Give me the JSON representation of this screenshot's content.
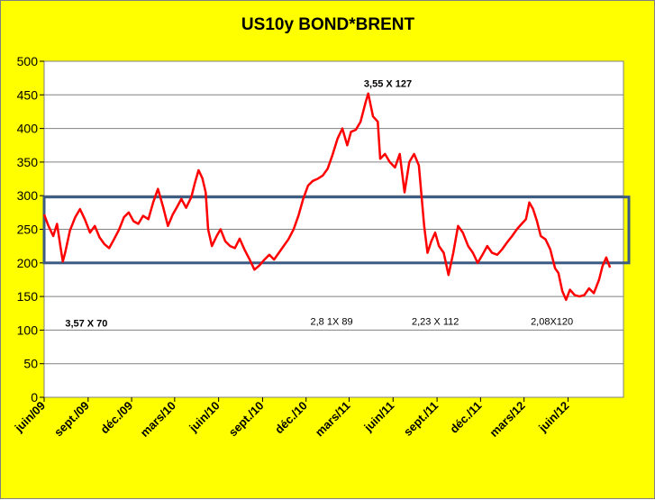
{
  "chart_data": {
    "type": "line",
    "title": "US10y BOND*BRENT",
    "xlabel": "",
    "ylabel": "",
    "ylim": [
      0,
      500
    ],
    "y_ticks": [
      0,
      50,
      100,
      150,
      200,
      250,
      300,
      350,
      400,
      450,
      500
    ],
    "x_ticks": [
      "juin/09",
      "sept./09",
      "déc./09",
      "mars/10",
      "juin/10",
      "sept./10",
      "déc./10",
      "mars/11",
      "juin/11",
      "sept./11",
      "déc./11",
      "mars/12",
      "juin/12"
    ],
    "xlim_months": [
      "2009-06",
      "2012-09"
    ],
    "grid": true,
    "legend": "none",
    "colors": {
      "line": "#ff0000",
      "box": "#3b5b84",
      "background": "#ffff00",
      "plot": "#ffffff",
      "grid": "#808080"
    },
    "series": [
      {
        "values": [
          [
            "2009-06-01",
            272
          ],
          [
            "2009-06-10",
            255
          ],
          [
            "2009-06-20",
            240
          ],
          [
            "2009-06-28",
            258
          ],
          [
            "2009-07-05",
            225
          ],
          [
            "2009-07-10",
            202
          ],
          [
            "2009-07-15",
            215
          ],
          [
            "2009-07-25",
            248
          ],
          [
            "2009-08-05",
            268
          ],
          [
            "2009-08-15",
            280
          ],
          [
            "2009-08-25",
            265
          ],
          [
            "2009-09-05",
            245
          ],
          [
            "2009-09-15",
            255
          ],
          [
            "2009-09-25",
            238
          ],
          [
            "2009-10-05",
            228
          ],
          [
            "2009-10-15",
            222
          ],
          [
            "2009-10-25",
            235
          ],
          [
            "2009-11-05",
            250
          ],
          [
            "2009-11-15",
            268
          ],
          [
            "2009-11-25",
            275
          ],
          [
            "2009-12-05",
            262
          ],
          [
            "2009-12-15",
            258
          ],
          [
            "2009-12-25",
            270
          ],
          [
            "2010-01-05",
            265
          ],
          [
            "2010-01-15",
            290
          ],
          [
            "2010-01-25",
            310
          ],
          [
            "2010-02-05",
            283
          ],
          [
            "2010-02-15",
            255
          ],
          [
            "2010-02-25",
            272
          ],
          [
            "2010-03-05",
            282
          ],
          [
            "2010-03-15",
            295
          ],
          [
            "2010-03-25",
            282
          ],
          [
            "2010-04-05",
            298
          ],
          [
            "2010-04-12",
            318
          ],
          [
            "2010-04-20",
            338
          ],
          [
            "2010-04-28",
            326
          ],
          [
            "2010-05-05",
            305
          ],
          [
            "2010-05-10",
            250
          ],
          [
            "2010-05-18",
            225
          ],
          [
            "2010-05-28",
            240
          ],
          [
            "2010-06-05",
            250
          ],
          [
            "2010-06-15",
            232
          ],
          [
            "2010-06-25",
            225
          ],
          [
            "2010-07-05",
            222
          ],
          [
            "2010-07-15",
            236
          ],
          [
            "2010-07-25",
            220
          ],
          [
            "2010-08-05",
            205
          ],
          [
            "2010-08-15",
            190
          ],
          [
            "2010-08-25",
            196
          ],
          [
            "2010-09-05",
            205
          ],
          [
            "2010-09-15",
            212
          ],
          [
            "2010-09-25",
            205
          ],
          [
            "2010-10-05",
            215
          ],
          [
            "2010-10-15",
            225
          ],
          [
            "2010-10-25",
            235
          ],
          [
            "2010-11-05",
            250
          ],
          [
            "2010-11-15",
            270
          ],
          [
            "2010-11-25",
            295
          ],
          [
            "2010-12-05",
            315
          ],
          [
            "2010-12-15",
            322
          ],
          [
            "2010-12-25",
            325
          ],
          [
            "2011-01-05",
            330
          ],
          [
            "2011-01-15",
            340
          ],
          [
            "2011-01-25",
            360
          ],
          [
            "2011-02-05",
            385
          ],
          [
            "2011-02-15",
            400
          ],
          [
            "2011-02-25",
            375
          ],
          [
            "2011-03-05",
            395
          ],
          [
            "2011-03-15",
            398
          ],
          [
            "2011-03-25",
            410
          ],
          [
            "2011-04-05",
            440
          ],
          [
            "2011-04-10",
            452
          ],
          [
            "2011-04-20",
            418
          ],
          [
            "2011-04-30",
            410
          ],
          [
            "2011-05-05",
            355
          ],
          [
            "2011-05-15",
            362
          ],
          [
            "2011-05-25",
            350
          ],
          [
            "2011-06-05",
            342
          ],
          [
            "2011-06-15",
            362
          ],
          [
            "2011-06-25",
            305
          ],
          [
            "2011-07-05",
            350
          ],
          [
            "2011-07-15",
            362
          ],
          [
            "2011-07-25",
            345
          ],
          [
            "2011-08-05",
            255
          ],
          [
            "2011-08-12",
            215
          ],
          [
            "2011-08-20",
            232
          ],
          [
            "2011-08-28",
            245
          ],
          [
            "2011-09-05",
            225
          ],
          [
            "2011-09-15",
            215
          ],
          [
            "2011-09-25",
            182
          ],
          [
            "2011-10-05",
            215
          ],
          [
            "2011-10-15",
            255
          ],
          [
            "2011-10-25",
            245
          ],
          [
            "2011-11-05",
            225
          ],
          [
            "2011-11-15",
            215
          ],
          [
            "2011-11-25",
            200
          ],
          [
            "2011-12-05",
            212
          ],
          [
            "2011-12-15",
            225
          ],
          [
            "2011-12-25",
            215
          ],
          [
            "2012-01-05",
            212
          ],
          [
            "2012-01-15",
            220
          ],
          [
            "2012-01-25",
            230
          ],
          [
            "2012-02-05",
            240
          ],
          [
            "2012-02-15",
            250
          ],
          [
            "2012-02-25",
            258
          ],
          [
            "2012-03-05",
            265
          ],
          [
            "2012-03-12",
            290
          ],
          [
            "2012-03-20",
            280
          ],
          [
            "2012-03-28",
            262
          ],
          [
            "2012-04-05",
            240
          ],
          [
            "2012-04-15",
            235
          ],
          [
            "2012-04-25",
            220
          ],
          [
            "2012-05-05",
            192
          ],
          [
            "2012-05-12",
            185
          ],
          [
            "2012-05-20",
            158
          ],
          [
            "2012-05-28",
            145
          ],
          [
            "2012-06-05",
            160
          ],
          [
            "2012-06-15",
            152
          ],
          [
            "2012-06-25",
            150
          ],
          [
            "2012-07-05",
            152
          ],
          [
            "2012-07-15",
            162
          ],
          [
            "2012-07-25",
            155
          ],
          [
            "2012-08-05",
            175
          ],
          [
            "2012-08-12",
            195
          ],
          [
            "2012-08-20",
            208
          ],
          [
            "2012-08-28",
            193
          ]
        ]
      }
    ],
    "band": {
      "y_from": 200,
      "y_to": 298
    },
    "annotations": [
      {
        "text": "3,55 X 127",
        "bold": true,
        "x": "2011-04-01",
        "y": 462
      },
      {
        "text": "3,57 X 70",
        "bold": true,
        "x": "2009-07-15",
        "y": 105
      },
      {
        "text": "2,8 1X 89",
        "bold": false,
        "x": "2010-12-10",
        "y": 108
      },
      {
        "text": "2,23 X 112",
        "bold": false,
        "x": "2011-07-10",
        "y": 108
      },
      {
        "text": "2,08X120",
        "bold": false,
        "x": "2012-03-15",
        "y": 108
      }
    ]
  }
}
